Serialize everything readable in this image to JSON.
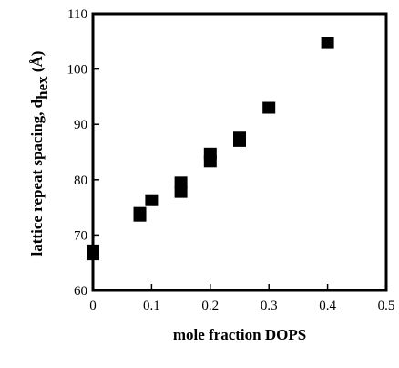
{
  "chart_data": {
    "type": "scatter",
    "title": "",
    "xlabel": "mole fraction DOPS",
    "ylabel_prefix": "lattice repeat spacing, d",
    "ylabel_subscript": "hex",
    "ylabel_suffix": " (Å)",
    "xlim": [
      0,
      0.5
    ],
    "ylim": [
      60,
      110
    ],
    "x_ticks": [
      0,
      0.1,
      0.2,
      0.3,
      0.4,
      0.5
    ],
    "x_tick_labels": [
      "0",
      "0.1",
      "0.2",
      "0.3",
      "0.4",
      "0.5"
    ],
    "y_ticks": [
      60,
      70,
      80,
      90,
      100,
      110
    ],
    "y_tick_labels": [
      "60",
      "70",
      "80",
      "90",
      "100",
      "110"
    ],
    "grid": false,
    "legend": "none",
    "marker": "square",
    "marker_color": "#000000",
    "series": [
      {
        "points": [
          {
            "x": 0.0,
            "y": 66.5
          },
          {
            "x": 0.0,
            "y": 67.2
          },
          {
            "x": 0.08,
            "y": 73.5
          },
          {
            "x": 0.08,
            "y": 74.0
          },
          {
            "x": 0.1,
            "y": 76.3
          },
          {
            "x": 0.15,
            "y": 77.8
          },
          {
            "x": 0.15,
            "y": 79.5
          },
          {
            "x": 0.2,
            "y": 83.3
          },
          {
            "x": 0.2,
            "y": 84.7
          },
          {
            "x": 0.25,
            "y": 87.0
          },
          {
            "x": 0.25,
            "y": 87.6
          },
          {
            "x": 0.3,
            "y": 93.0
          },
          {
            "x": 0.4,
            "y": 104.7
          }
        ]
      }
    ]
  }
}
